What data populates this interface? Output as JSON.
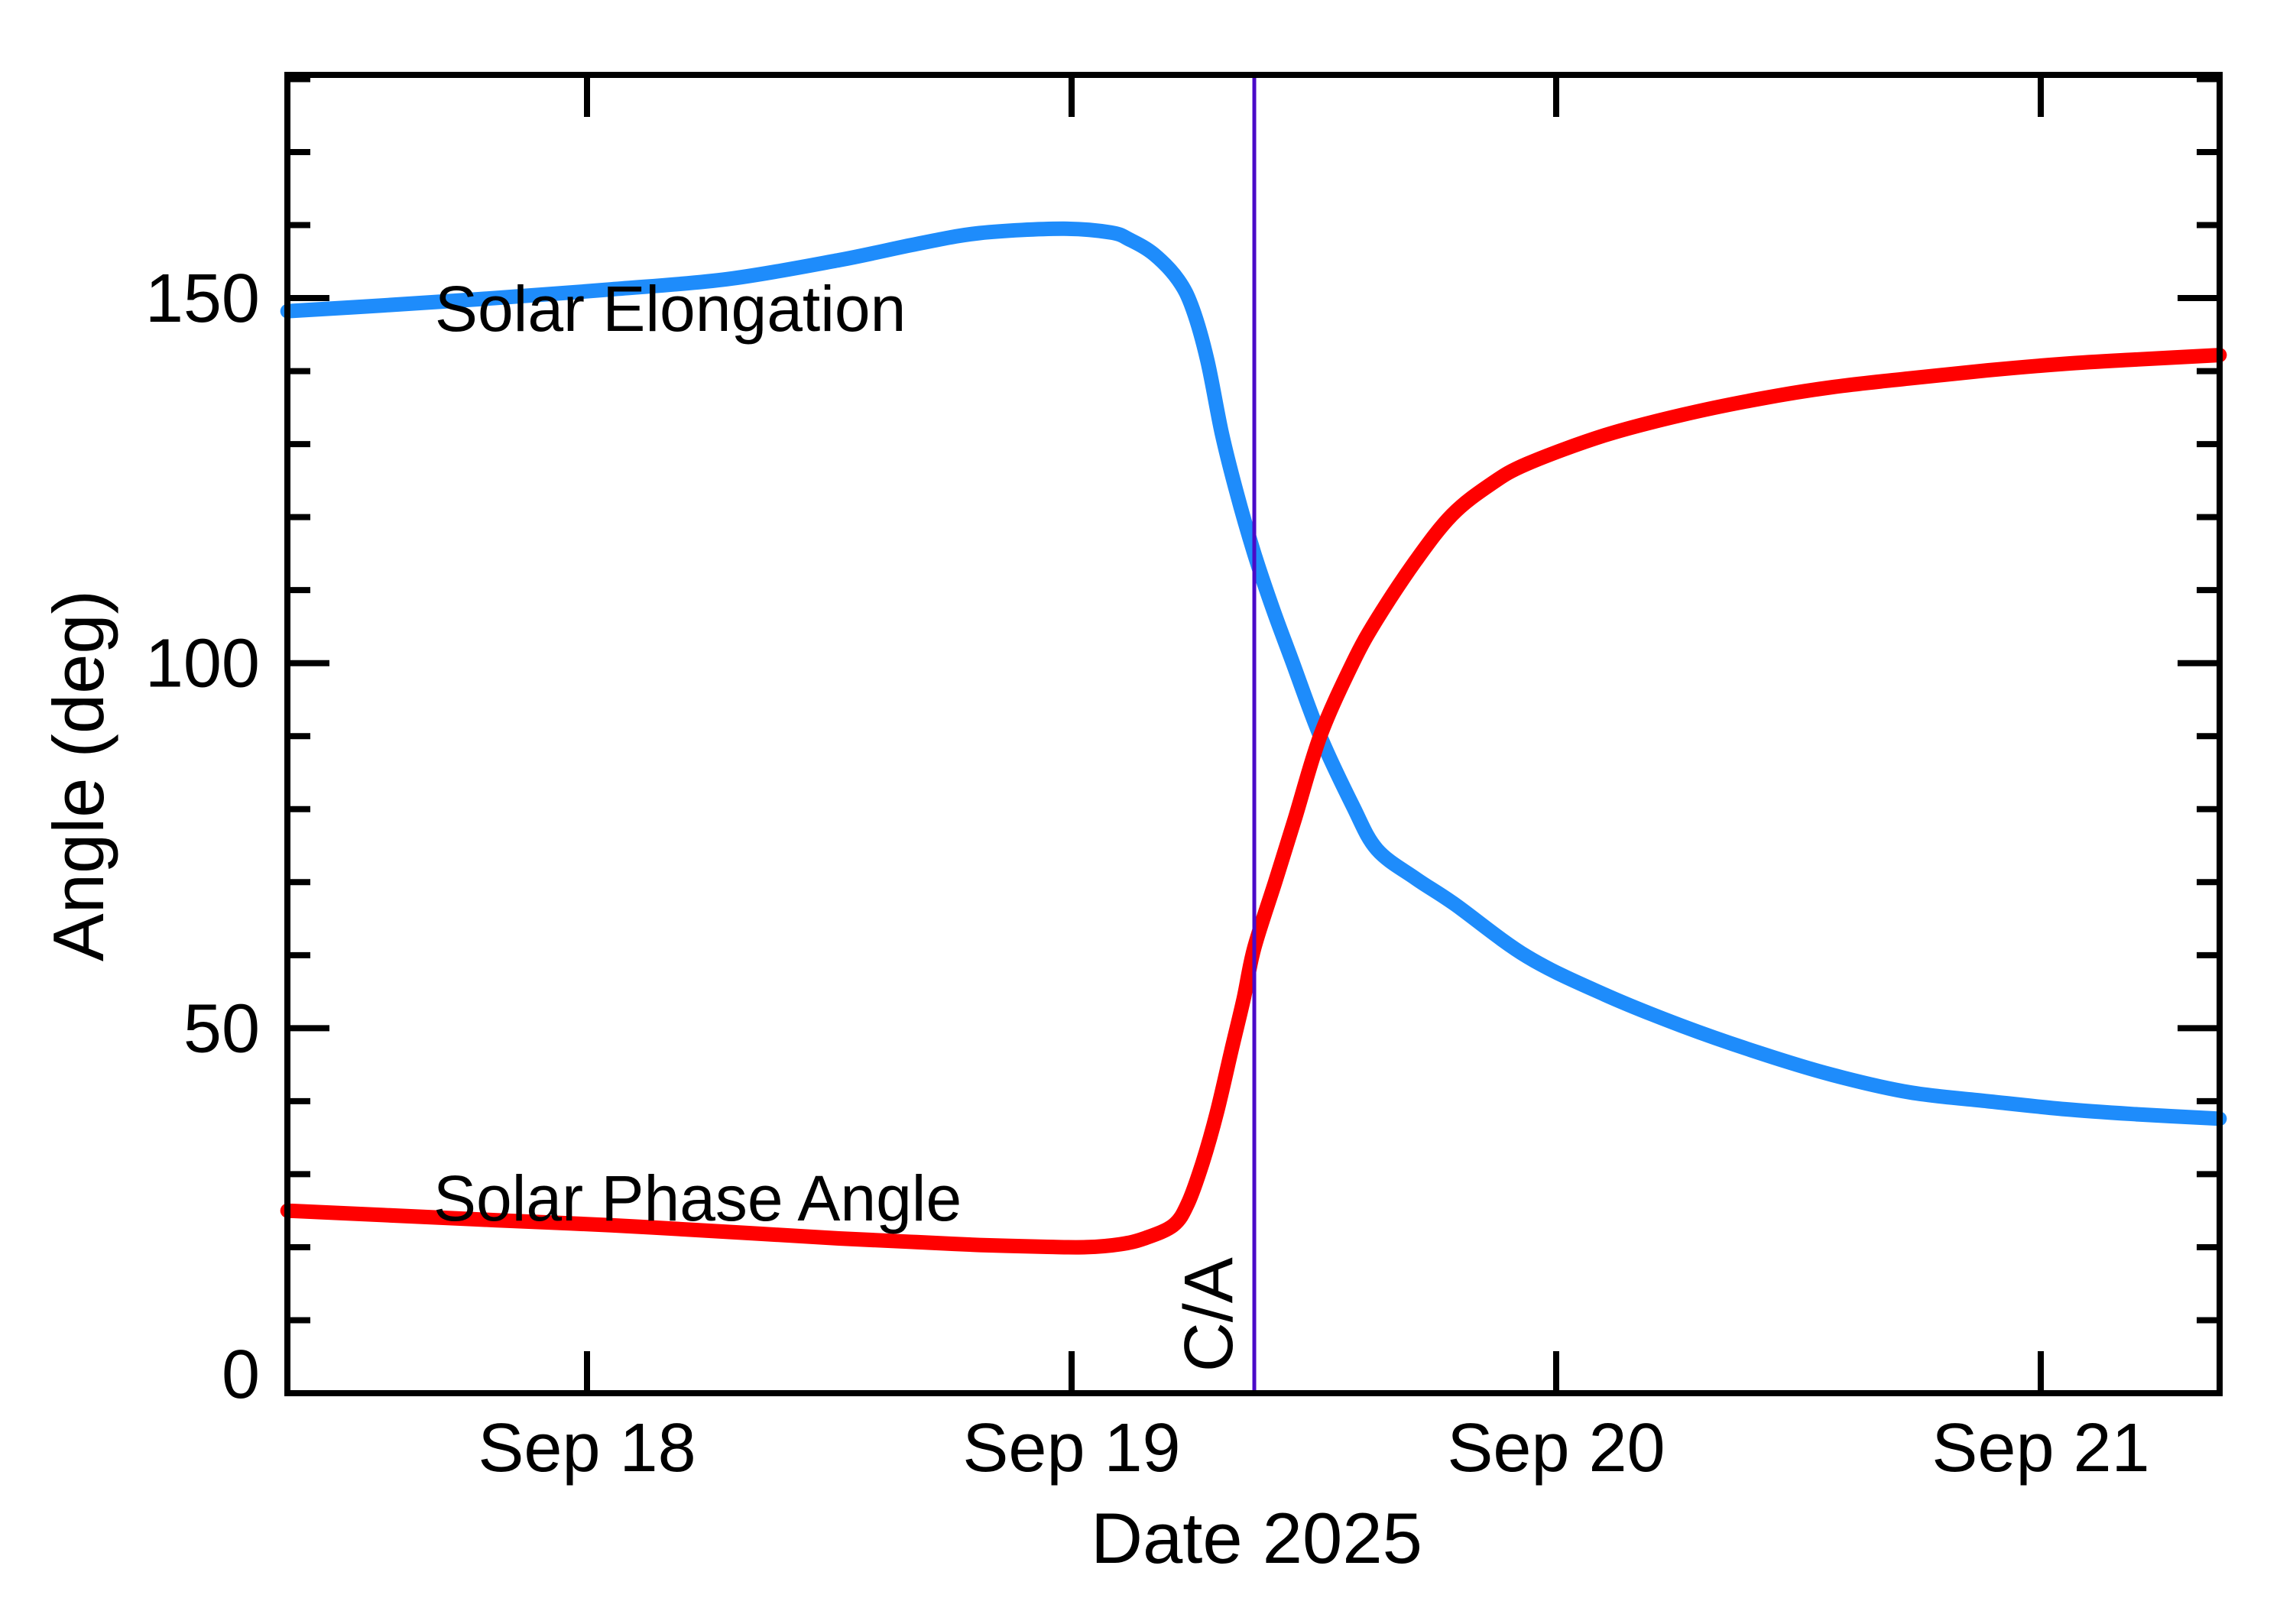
{
  "figure": {
    "background": "#FFFFFF",
    "frame_color": "#000000"
  },
  "chart_data": {
    "type": "line",
    "title": "",
    "xlabel": "Date 2025",
    "ylabel": "Angle (deg)",
    "grid": false,
    "legend": "inline-curve-labels",
    "x_axis": {
      "unit": "day of September 2025",
      "min": 17.3817,
      "max": 21.3691,
      "major_ticks": [
        {
          "value": 18,
          "label": "Sep 18"
        },
        {
          "value": 19,
          "label": "Sep 19"
        },
        {
          "value": 20,
          "label": "Sep 20"
        },
        {
          "value": 21,
          "label": "Sep 21"
        }
      ],
      "minor_ticks": false
    },
    "y_axis": {
      "min": 0,
      "max": 180.57,
      "major_ticks": [
        {
          "value": 0,
          "label": "0"
        },
        {
          "value": 50,
          "label": "50"
        },
        {
          "value": 100,
          "label": "100"
        },
        {
          "value": 150,
          "label": "150"
        }
      ],
      "minor_tick_step": 10
    },
    "annotations": [
      {
        "type": "vline",
        "label": "C/A",
        "x": 19.377,
        "color": "#4A0AC8",
        "label_anchor": {
          "x": 19.331,
          "y": 2.9
        },
        "label_rotation": -90
      }
    ],
    "series": [
      {
        "name": "Solar Elongation",
        "color": "#1E8CFB",
        "label_anchor": {
          "x": 17.686,
          "y": 145.5
        },
        "points": [
          [
            17.382,
            148.2
          ],
          [
            17.58,
            149.0
          ],
          [
            17.81,
            150.0
          ],
          [
            18.05,
            151.2
          ],
          [
            18.29,
            152.6
          ],
          [
            18.52,
            155.2
          ],
          [
            18.68,
            157.4
          ],
          [
            18.81,
            158.9
          ],
          [
            18.98,
            159.5
          ],
          [
            19.08,
            159.0
          ],
          [
            19.12,
            158.0
          ],
          [
            19.17,
            156.0
          ],
          [
            19.22,
            152.5
          ],
          [
            19.25,
            148.5
          ],
          [
            19.28,
            141.5
          ],
          [
            19.31,
            131.5
          ],
          [
            19.34,
            123.5
          ],
          [
            19.377,
            115.0
          ],
          [
            19.415,
            107.5
          ],
          [
            19.454,
            100.5
          ],
          [
            19.513,
            90.0
          ],
          [
            19.58,
            80.5
          ],
          [
            19.63,
            74.5
          ],
          [
            19.71,
            70.5
          ],
          [
            19.79,
            67.0
          ],
          [
            19.94,
            59.8
          ],
          [
            20.1,
            54.6
          ],
          [
            20.26,
            50.3
          ],
          [
            20.42,
            46.6
          ],
          [
            20.57,
            43.6
          ],
          [
            20.73,
            41.2
          ],
          [
            20.89,
            40.0
          ],
          [
            21.05,
            38.9
          ],
          [
            21.2,
            38.2
          ],
          [
            21.369,
            37.6
          ]
        ]
      },
      {
        "name": "Solar Phase Angle",
        "color": "#FF0000",
        "label_anchor": {
          "x": 17.683,
          "y": 23.65
        },
        "points": [
          [
            17.382,
            25.0
          ],
          [
            17.58,
            24.4
          ],
          [
            17.81,
            23.7
          ],
          [
            18.05,
            23.0
          ],
          [
            18.29,
            22.1
          ],
          [
            18.52,
            21.2
          ],
          [
            18.68,
            20.7
          ],
          [
            18.81,
            20.3
          ],
          [
            18.95,
            20.05
          ],
          [
            19.03,
            20.0
          ],
          [
            19.1,
            20.4
          ],
          [
            19.15,
            21.2
          ],
          [
            19.21,
            23.0
          ],
          [
            19.24,
            26.0
          ],
          [
            19.27,
            31.5
          ],
          [
            19.3,
            38.5
          ],
          [
            19.33,
            47.0
          ],
          [
            19.355,
            54.0
          ],
          [
            19.377,
            61.0
          ],
          [
            19.42,
            70.0
          ],
          [
            19.46,
            78.5
          ],
          [
            19.513,
            90.0
          ],
          [
            19.58,
            100.0
          ],
          [
            19.63,
            106.0
          ],
          [
            19.71,
            114.0
          ],
          [
            19.785,
            120.3
          ],
          [
            19.865,
            124.5
          ],
          [
            19.94,
            127.3
          ],
          [
            20.1,
            131.2
          ],
          [
            20.26,
            134.0
          ],
          [
            20.42,
            136.2
          ],
          [
            20.57,
            137.8
          ],
          [
            20.73,
            139.0
          ],
          [
            20.89,
            140.1
          ],
          [
            21.05,
            141.0
          ],
          [
            21.2,
            141.6
          ],
          [
            21.369,
            142.2
          ]
        ]
      }
    ]
  }
}
